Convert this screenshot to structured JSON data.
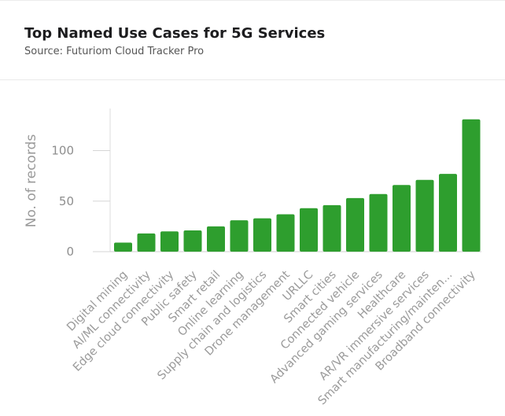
{
  "chart_data": {
    "type": "bar",
    "title": "Top Named Use Cases for 5G Services",
    "subtitle": "Source: Futuriom Cloud Tracker Pro",
    "ylabel": "No. of records",
    "xlabel": "",
    "ylim": [
      0,
      140
    ],
    "yticks": [
      0,
      50,
      100
    ],
    "grid": false,
    "legend": "none",
    "bar_color": "#2e9e2e",
    "categories": [
      "Digital mining",
      "AI/ML connectivity",
      "Edge cloud connectivity",
      "Public safety",
      "Smart retail",
      "Online learning",
      "Supply chain and logistics",
      "Drone management",
      "URLLC",
      "Smart cities",
      "Connected vehicle",
      "Advanced gaming services",
      "Healthcare",
      "AR/VR immersive services",
      "Smart manufacturing/mainten...",
      "Broadband connectivity"
    ],
    "values": [
      9,
      18,
      20,
      21,
      25,
      31,
      33,
      37,
      43,
      46,
      53,
      57,
      66,
      71,
      77,
      131
    ]
  }
}
